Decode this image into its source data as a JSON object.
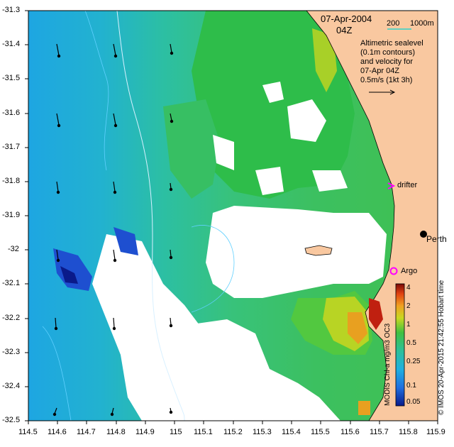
{
  "map": {
    "lon_range": [
      114.5,
      115.9
    ],
    "lat_range": [
      -32.5,
      -31.3
    ],
    "x_ticks": [
      "114.5",
      "114.6",
      "114.7",
      "114.8",
      "114.9",
      "115",
      "115.1",
      "115.2",
      "115.3",
      "115.4",
      "115.5",
      "115.6",
      "115.7",
      "115.8",
      "115.9"
    ],
    "y_ticks": [
      "-31.3",
      "-31.4",
      "-31.5",
      "-31.6",
      "-31.7",
      "-31.8",
      "-31.9",
      "-32",
      "-32.1",
      "-32.2",
      "-32.3",
      "-32.4",
      "-32.5"
    ]
  },
  "header": {
    "date": "07-Apr-2004",
    "time": "04Z",
    "scale_200": "200",
    "scale_1000": "1000m"
  },
  "legend": {
    "line1": "Altimetric sealevel",
    "line2": "(0.1m contours)",
    "line3": "and velocity for",
    "line4": "07-Apr 04Z",
    "line5": "0.5m/s (1kt 3h)"
  },
  "markers": {
    "drifter": "drifter",
    "perth": "Perth",
    "argo": "Argo"
  },
  "colorbar": {
    "ticks": [
      "4",
      "2",
      "1",
      "0.5",
      "0.25",
      "0.1",
      "0.05"
    ],
    "label": "MODIS Chl-a mg/m3 OC3"
  },
  "credit": "© IMOS 20-Apr-2015 21:42:55 Hobart time",
  "colors": {
    "land": "#f9c8a0",
    "deep_blue": "#1a9fd8",
    "green": "#2ebd4a",
    "shelf_green": "#52c840",
    "yellow": "#e0d820",
    "orange": "#e89a20",
    "red": "#c02010",
    "drifter": "#ff00ff",
    "argo": "#ff00ff"
  }
}
